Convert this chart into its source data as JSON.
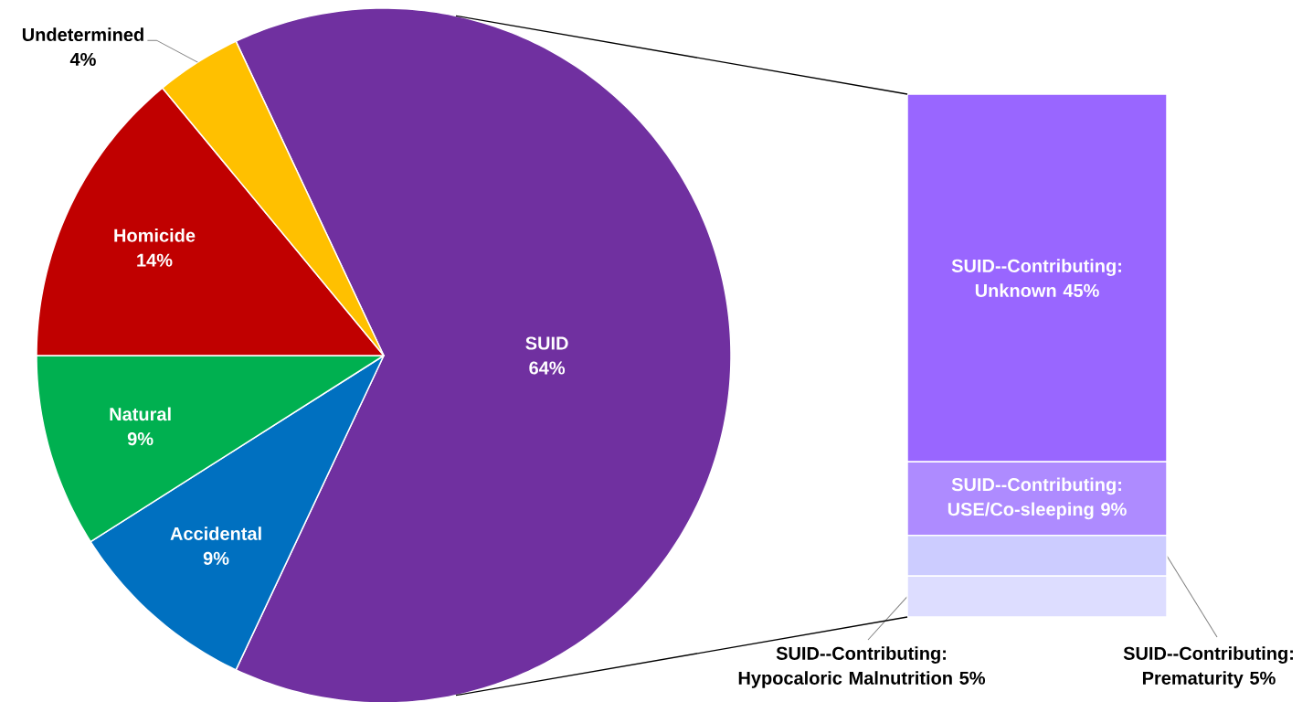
{
  "chart_data": [
    {
      "type": "pie",
      "categories": [
        "SUID",
        "Accidental",
        "Natural",
        "Homicide",
        "Undetermined"
      ],
      "values": [
        64,
        9,
        9,
        14,
        4
      ],
      "colors": [
        "#7030a0",
        "#0070c0",
        "#00b050",
        "#c00000",
        "#ffc000"
      ],
      "value_labels": [
        "64%",
        "9%",
        "9%",
        "14%",
        "4%"
      ]
    },
    {
      "type": "bar",
      "stacked": true,
      "categories": [
        null
      ],
      "series": [
        {
          "color": "#ddddff",
          "values": [
            5
          ],
          "value_labels": [
            "SUID--Contributing: Hypocaloric Malnutrition 5%"
          ]
        },
        {
          "color": "#ccccff",
          "values": [
            5
          ],
          "value_labels": [
            "SUID--Contributing: Prematurity 5%"
          ]
        },
        {
          "color": "#ae8bff",
          "values": [
            9
          ],
          "value_labels": [
            "SUID--Contributing: USE/Co-sleeping 9%"
          ]
        },
        {
          "color": "#9966ff",
          "values": [
            45
          ],
          "value_labels": [
            "SUID--Contributing: Unknown 45%"
          ]
        }
      ]
    }
  ]
}
